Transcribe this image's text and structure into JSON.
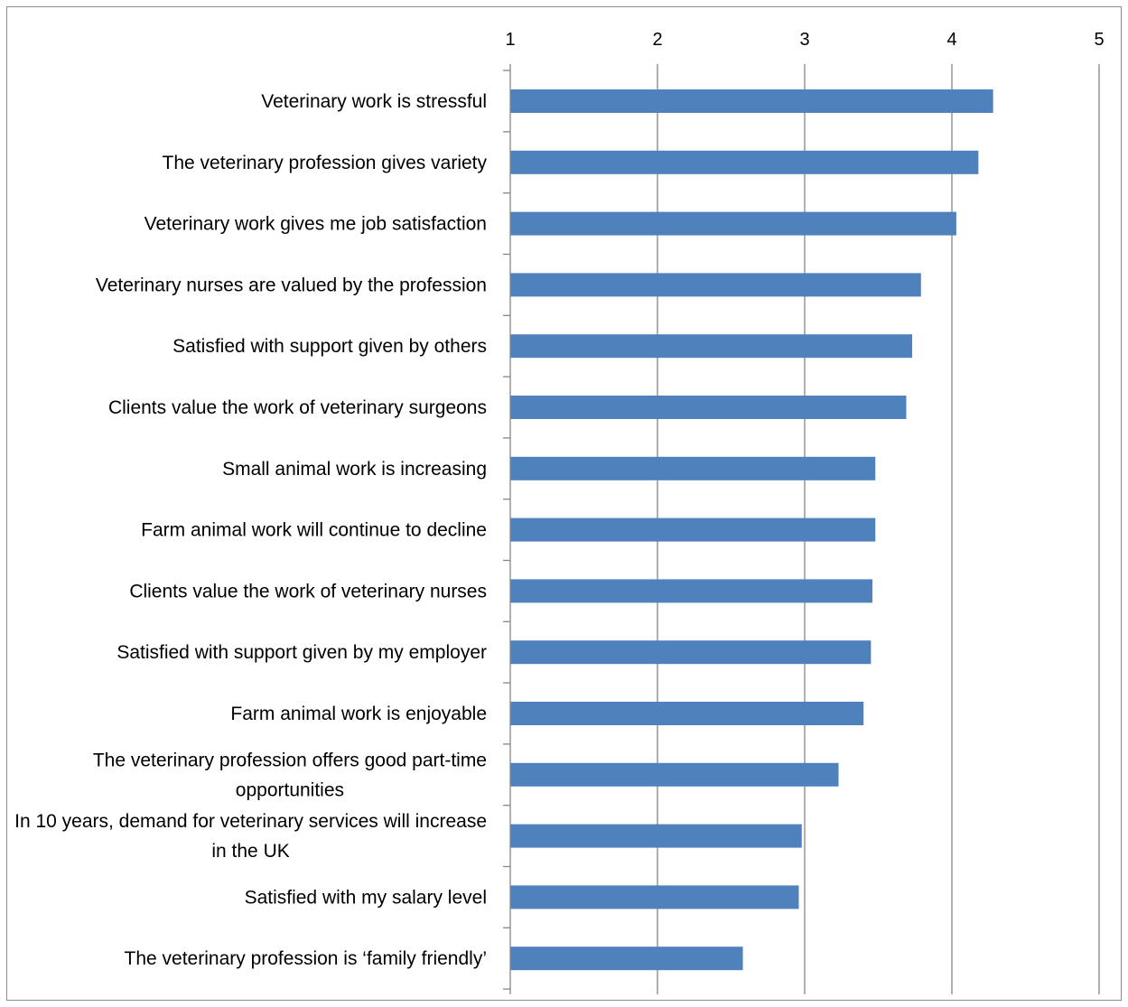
{
  "chart_data": {
    "type": "bar",
    "orientation": "horizontal",
    "title": "",
    "xlabel": "",
    "ylabel": "",
    "xlim": [
      1,
      5
    ],
    "xticks": [
      1,
      2,
      3,
      4,
      5
    ],
    "axis_position": "top",
    "grid": "vertical major gridlines",
    "legend": "none",
    "categories": [
      "Veterinary work is stressful",
      "The veterinary profession gives variety",
      "Veterinary work gives me job satisfaction",
      "Veterinary nurses are valued by the profession",
      "Satisfied with support given by others",
      "Clients value the work of veterinary surgeons",
      "Small animal work is increasing",
      "Farm animal work will continue to decline",
      "Clients value the work of veterinary nurses",
      "Satisfied with support given by my employer",
      "Farm animal work is enjoyable",
      "The veterinary profession offers good part-time opportunities",
      "In 10 years, demand for veterinary services will increase in the UK",
      "Satisfied with my salary level",
      "The veterinary profession is ‘family friendly’"
    ],
    "series": [
      {
        "values": [
          4.28,
          4.18,
          4.03,
          3.79,
          3.73,
          3.69,
          3.48,
          3.48,
          3.46,
          3.45,
          3.4,
          3.23,
          2.98,
          2.96,
          2.58
        ]
      }
    ]
  },
  "colors": {
    "bar": "#4f81bd",
    "gridline": "#868686",
    "axis": "#868686",
    "frame": "#8c8c8c"
  }
}
